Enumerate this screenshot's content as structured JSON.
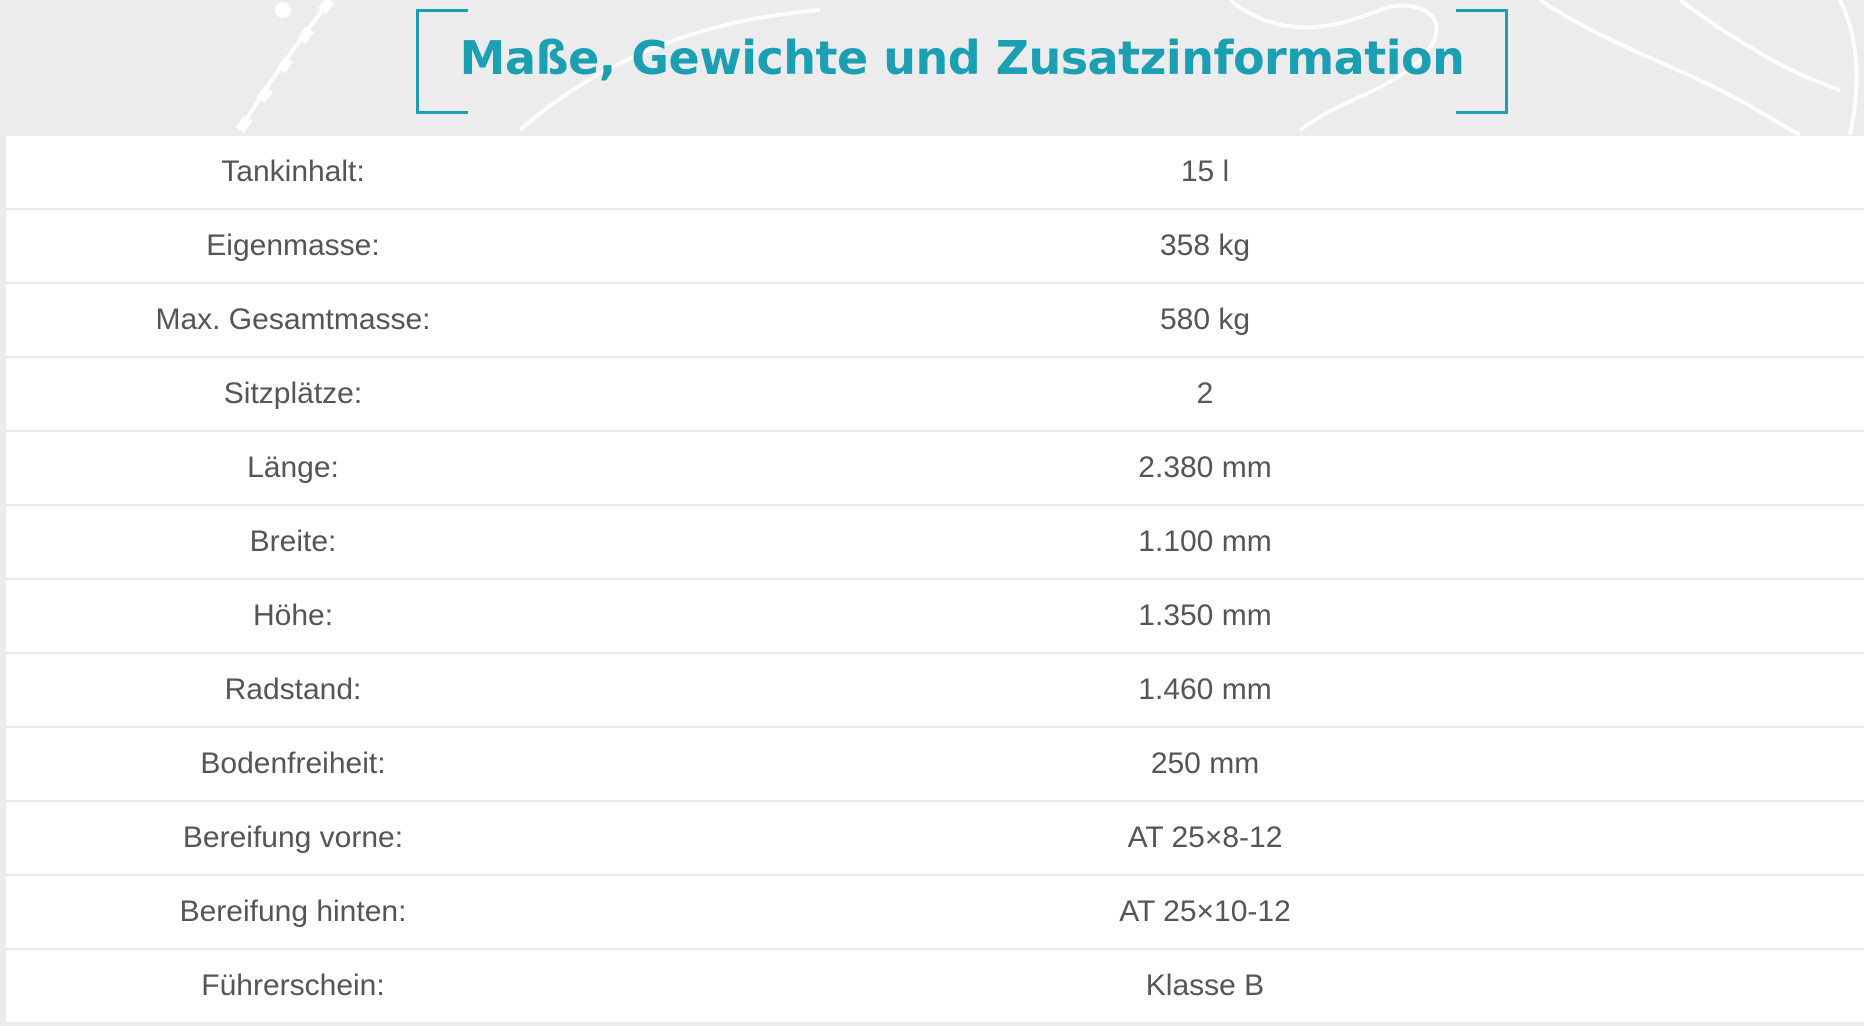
{
  "page": {
    "title": "Maße, Gewichte und Zusatzinformation",
    "accent_color": "#1b9fb2",
    "text_color": "#555555",
    "background_color": "#ececec"
  },
  "specs": [
    {
      "label": "Tankinhalt:",
      "value": "15 l"
    },
    {
      "label": "Eigenmasse:",
      "value": "358 kg"
    },
    {
      "label": "Max. Gesamtmasse:",
      "value": "580 kg"
    },
    {
      "label": "Sitzplätze:",
      "value": "2"
    },
    {
      "label": "Länge:",
      "value": "2.380 mm"
    },
    {
      "label": "Breite:",
      "value": "1.100 mm"
    },
    {
      "label": "Höhe:",
      "value": "1.350 mm"
    },
    {
      "label": "Radstand:",
      "value": "1.460 mm"
    },
    {
      "label": "Bodenfreiheit:",
      "value": "250 mm"
    },
    {
      "label": "Bereifung vorne:",
      "value": "AT 25×8-12"
    },
    {
      "label": "Bereifung hinten:",
      "value": "AT 25×10-12"
    },
    {
      "label": "Führerschein:",
      "value": "Klasse B"
    }
  ]
}
